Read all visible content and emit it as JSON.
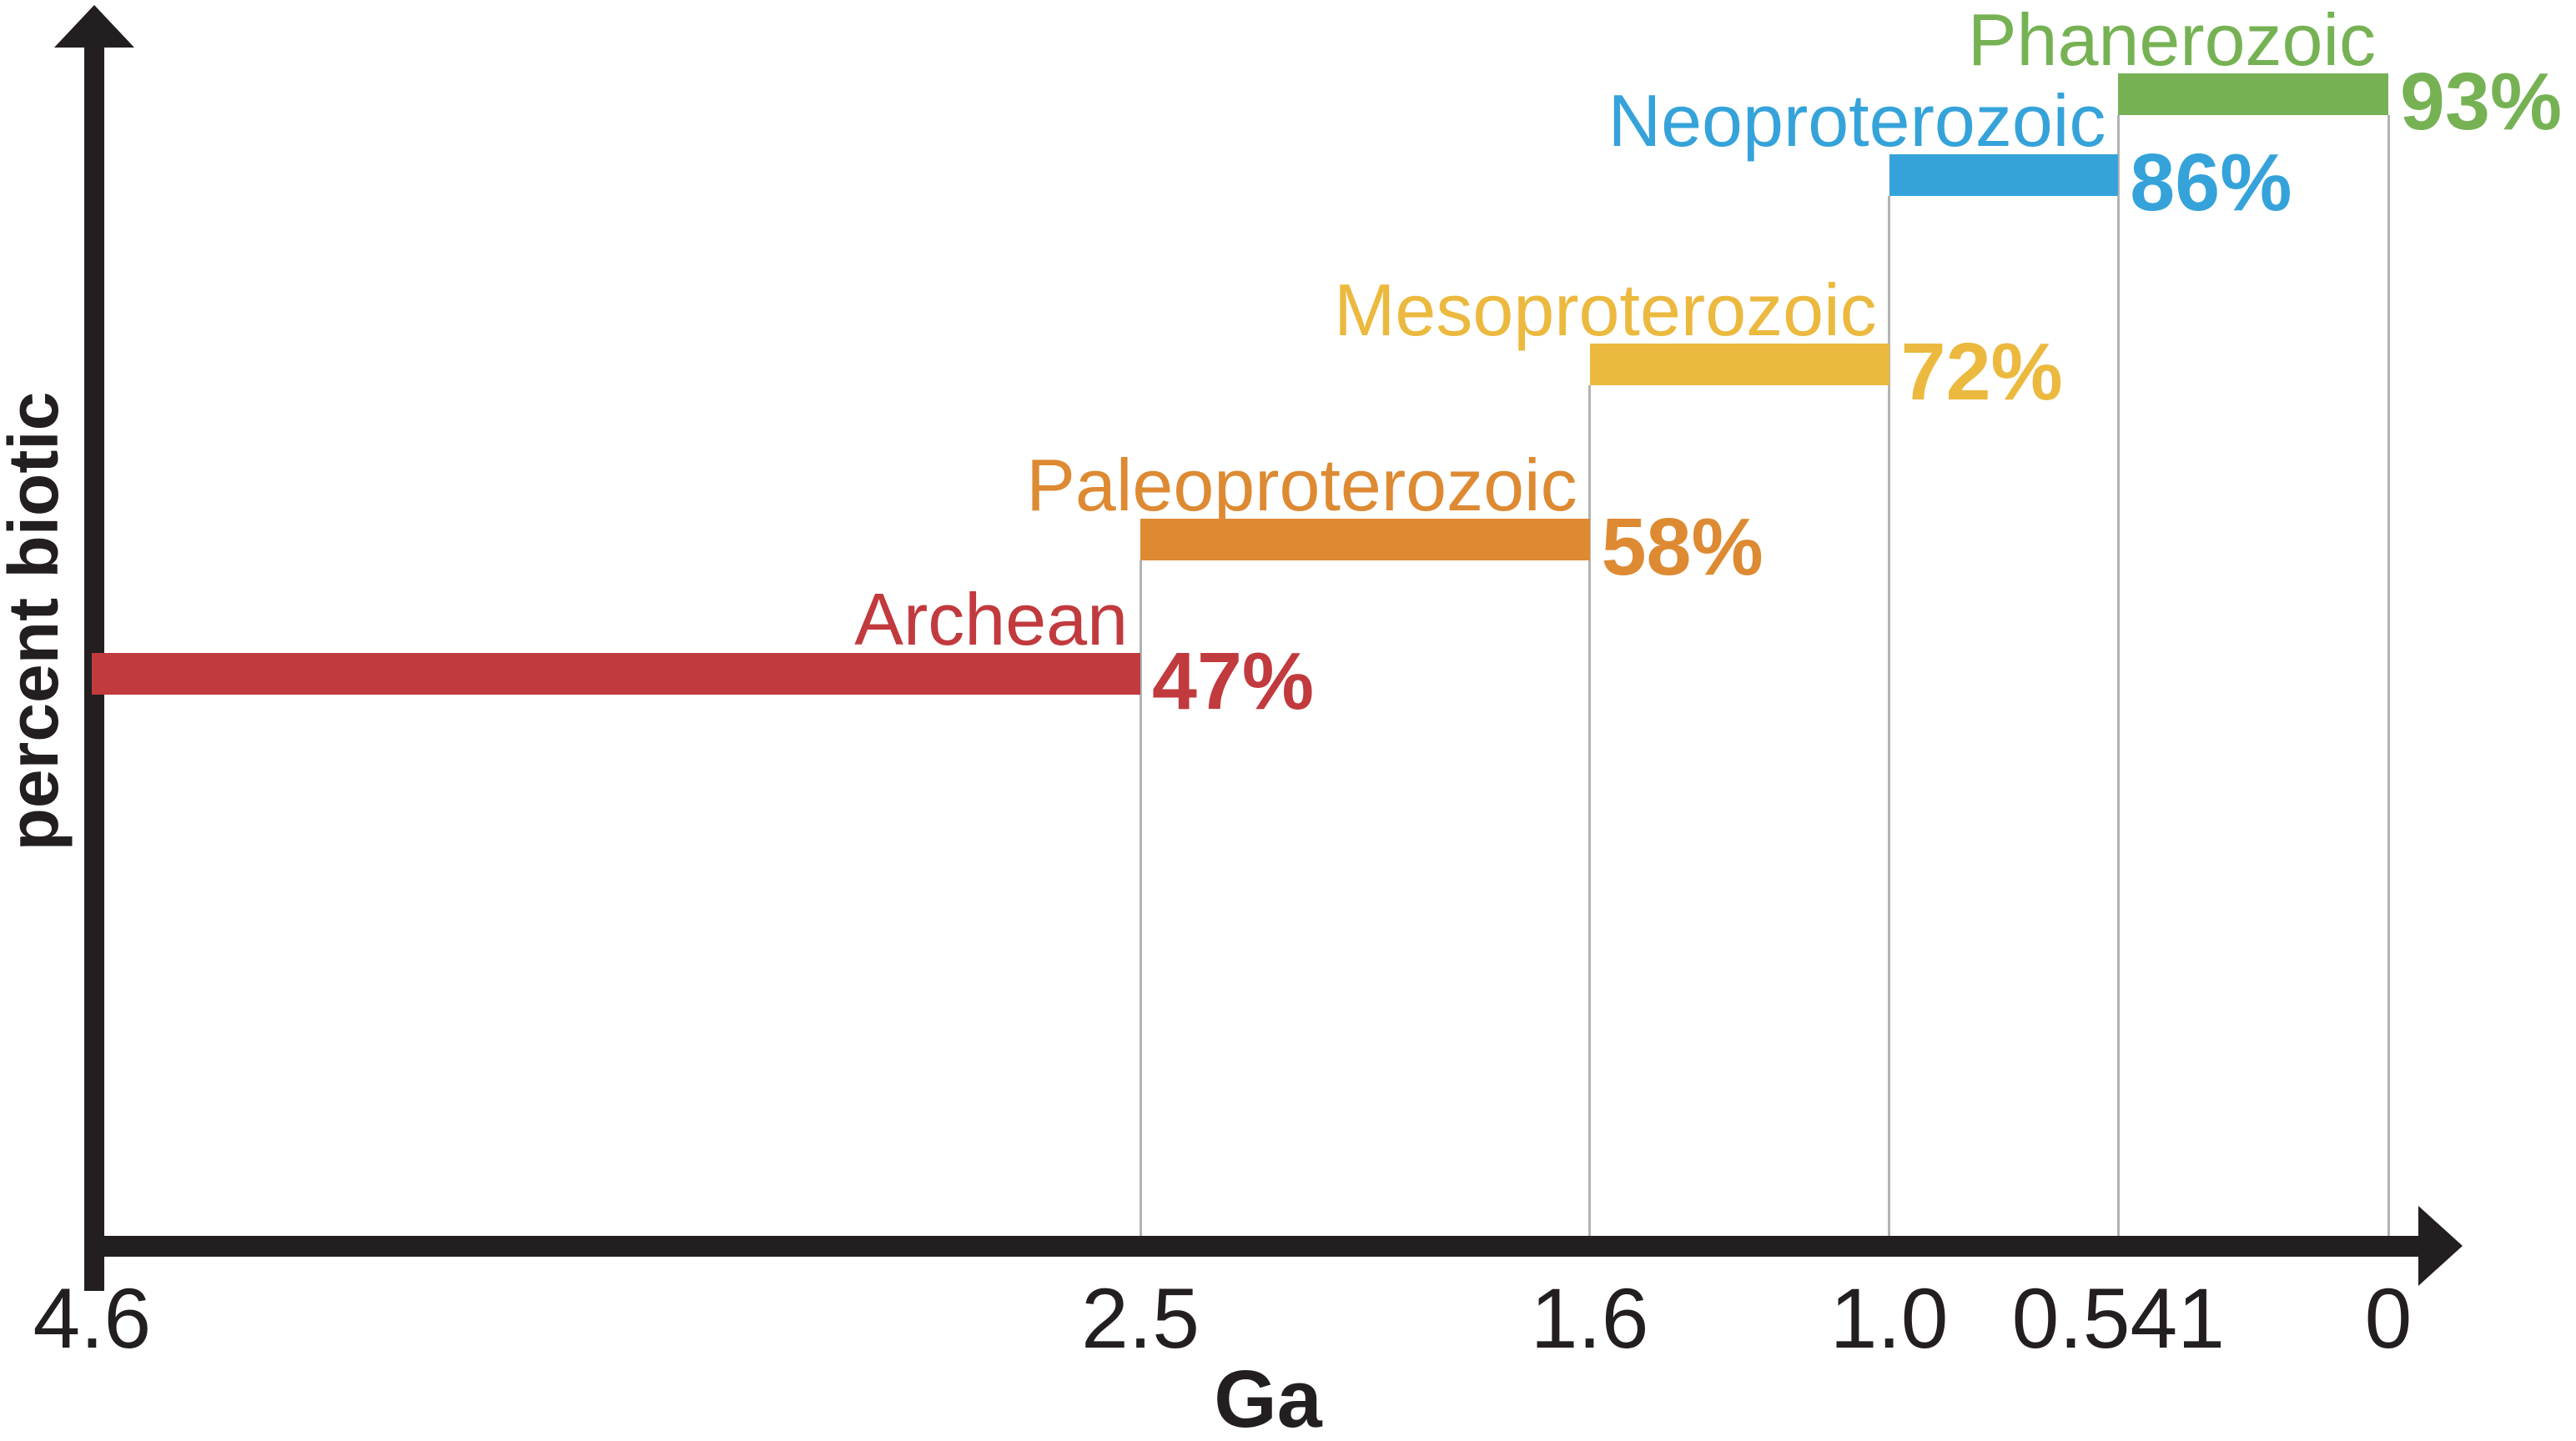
{
  "figure": {
    "background": "#ffffff",
    "axis_color": "#231f20",
    "gridline_color": "#b3b3b3",
    "xlabel": "Ga",
    "ylabel": "percent biotic"
  },
  "chart_data": {
    "type": "bar",
    "orientation": "horizontal-timeline",
    "title": "",
    "xlabel": "Ga",
    "ylabel": "percent biotic",
    "grid": "boundary-droplines",
    "legend": "none",
    "x_axis": {
      "unit": "Ga",
      "min": 0,
      "max": 4.6,
      "direction": "older-left-to-younger-right",
      "ticks": [
        4.6,
        2.5,
        1.6,
        1.0,
        0.541,
        0
      ],
      "tick_labels": [
        "4.6",
        "2.5",
        "1.6",
        "1.0",
        "0.541",
        "0"
      ]
    },
    "series": [
      {
        "name": "Archean",
        "start_ga": 4.6,
        "end_ga": 2.5,
        "value_percent_biotic": 47,
        "value_label": "47%",
        "color": "#c13a3e"
      },
      {
        "name": "Paleoproterozoic",
        "start_ga": 2.5,
        "end_ga": 1.6,
        "value_percent_biotic": 58,
        "value_label": "58%",
        "color": "#dd8a33"
      },
      {
        "name": "Mesoproterozoic",
        "start_ga": 1.6,
        "end_ga": 1.0,
        "value_percent_biotic": 72,
        "value_label": "72%",
        "color": "#ecb93f"
      },
      {
        "name": "Neoproterozoic",
        "start_ga": 1.0,
        "end_ga": 0.541,
        "value_percent_biotic": 86,
        "value_label": "86%",
        "color": "#35a3da"
      },
      {
        "name": "Phanerozoic",
        "start_ga": 0.541,
        "end_ga": 0,
        "value_percent_biotic": 93,
        "value_label": "93%",
        "color": "#76b254"
      }
    ]
  }
}
